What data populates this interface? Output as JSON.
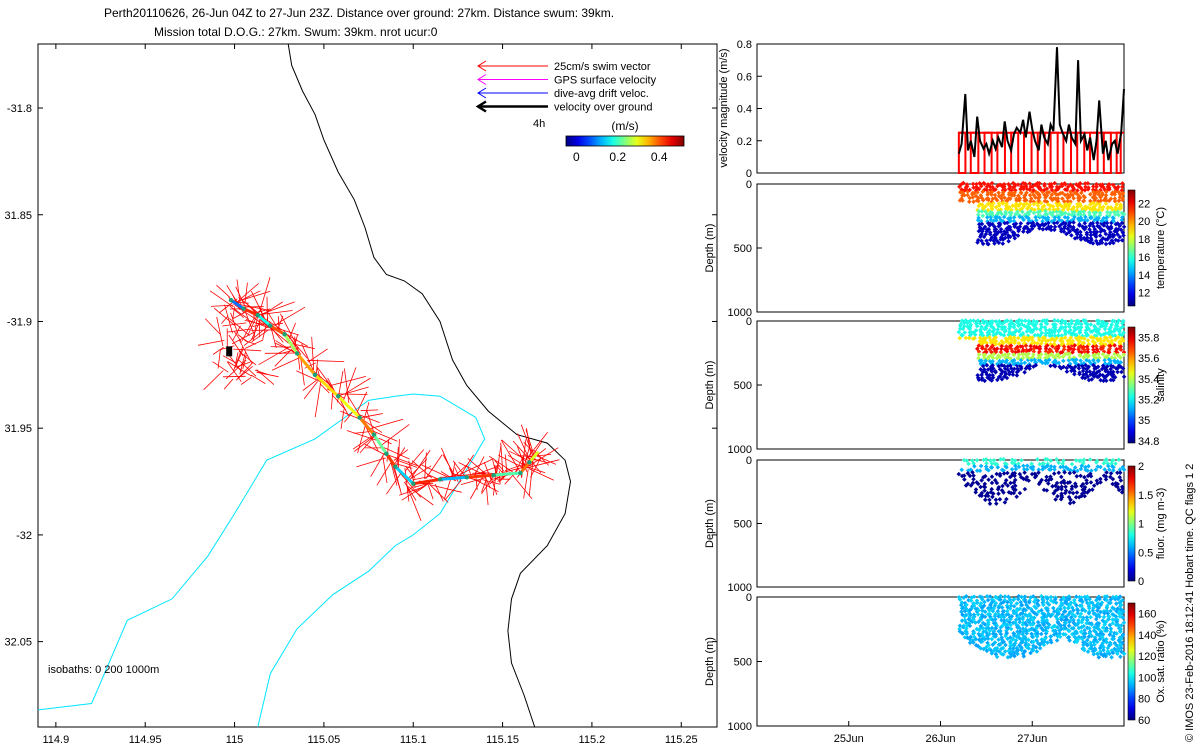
{
  "header": {
    "line1": "Perth20110626, 26-Jun 04Z to 27-Jun 23Z. Distance over ground: 27km. Distance swum: 39km.",
    "line2": "Mission total D.O.G.: 27km. Swum: 39km. nrot ucur:0"
  },
  "copyright": "© IMOS 23-Feb-2016 18:12:41 Hobart time. QC flags 1  2",
  "colors": {
    "swim_vector": "#ff0000",
    "gps_velocity": "#ff00ff",
    "drift_velocity": "#0000ff",
    "over_ground": "#000000",
    "isobath_200": "#00e5ff",
    "coast": "#000000",
    "velocity_bars": "#ff0000",
    "velocity_line": "#000000"
  },
  "chart_data": [
    {
      "type": "map",
      "xlim": [
        114.89,
        115.27
      ],
      "ylim": [
        -32.09,
        -31.77
      ],
      "xticks": [
        114.9,
        114.95,
        115,
        115.05,
        115.1,
        115.15,
        115.2,
        115.25
      ],
      "xtick_labels": [
        "114.9",
        "114.95",
        "115",
        "115.05",
        "115.1",
        "115.15",
        "115.2",
        "115.25"
      ],
      "yticks": [
        -31.8,
        -31.85,
        -31.9,
        -31.95,
        -32,
        -32.05
      ],
      "ytick_labels": [
        "-31.8",
        "31.85",
        "-31.9",
        "31.95",
        "-32",
        "32.05"
      ],
      "legend": {
        "position": "top-right",
        "entries": [
          {
            "label": "25cm/s swim vector",
            "color": "#ff0000"
          },
          {
            "label": "GPS surface velocity",
            "color": "#ff00ff"
          },
          {
            "label": "dive-avg drift veloc.",
            "color": "#0000ff"
          },
          {
            "label": "velocity over ground",
            "color": "#000000"
          }
        ],
        "scale_label": "4h"
      },
      "colorbar": {
        "label": "(m/s)",
        "ticks": [
          0,
          0.2,
          0.4
        ],
        "tick_labels": [
          "0",
          "0.2",
          "0.4"
        ],
        "range": [
          -0.05,
          0.52
        ]
      },
      "isobath_label": "isobaths: 0   200  1000m",
      "coastline": [
        [
          115.03,
          -31.77
        ],
        [
          115.032,
          -31.78
        ],
        [
          115.038,
          -31.792
        ],
        [
          115.045,
          -31.803
        ],
        [
          115.05,
          -31.815
        ],
        [
          115.058,
          -31.83
        ],
        [
          115.067,
          -31.843
        ],
        [
          115.073,
          -31.856
        ],
        [
          115.078,
          -31.87
        ],
        [
          115.085,
          -31.878
        ],
        [
          115.095,
          -31.881
        ],
        [
          115.105,
          -31.887
        ],
        [
          115.115,
          -31.9
        ],
        [
          115.122,
          -31.918
        ],
        [
          115.13,
          -31.93
        ],
        [
          115.142,
          -31.942
        ],
        [
          115.158,
          -31.953
        ],
        [
          115.175,
          -31.957
        ],
        [
          115.185,
          -31.965
        ],
        [
          115.188,
          -31.975
        ],
        [
          115.185,
          -31.99
        ],
        [
          115.175,
          -32.005
        ],
        [
          115.16,
          -32.018
        ],
        [
          115.155,
          -32.03
        ],
        [
          115.153,
          -32.045
        ],
        [
          115.155,
          -32.06
        ],
        [
          115.162,
          -32.075
        ],
        [
          115.168,
          -32.09
        ]
      ],
      "isobath_200": [
        [
          114.89,
          -32.082
        ],
        [
          114.92,
          -32.079
        ],
        [
          114.94,
          -32.04
        ],
        [
          114.965,
          -32.03
        ],
        [
          114.985,
          -32.01
        ],
        [
          115.0,
          -31.99
        ],
        [
          115.018,
          -31.965
        ],
        [
          115.045,
          -31.955
        ],
        [
          115.06,
          -31.946
        ],
        [
          115.075,
          -31.937
        ],
        [
          115.09,
          -31.935
        ],
        [
          115.1,
          -31.934
        ],
        [
          115.115,
          -31.935
        ],
        [
          115.125,
          -31.94
        ],
        [
          115.135,
          -31.945
        ],
        [
          115.14,
          -31.955
        ],
        [
          115.128,
          -31.972
        ],
        [
          115.115,
          -31.99
        ],
        [
          115.1,
          -32.0
        ],
        [
          115.09,
          -32.005
        ],
        [
          115.075,
          -32.017
        ],
        [
          115.055,
          -32.028
        ],
        [
          115.035,
          -32.044
        ],
        [
          115.02,
          -32.065
        ],
        [
          115.013,
          -32.09
        ]
      ],
      "track_over_ground": [
        [
          114.998,
          -31.89
        ],
        [
          115.005,
          -31.894
        ],
        [
          115.013,
          -31.897
        ],
        [
          115.02,
          -31.902
        ],
        [
          115.028,
          -31.906
        ],
        [
          115.035,
          -31.915
        ],
        [
          115.045,
          -31.925
        ],
        [
          115.058,
          -31.935
        ],
        [
          115.07,
          -31.945
        ],
        [
          115.078,
          -31.953
        ],
        [
          115.085,
          -31.962
        ],
        [
          115.09,
          -31.968
        ],
        [
          115.1,
          -31.976
        ],
        [
          115.115,
          -31.974
        ],
        [
          115.13,
          -31.973
        ],
        [
          115.145,
          -31.972
        ],
        [
          115.16,
          -31.971
        ],
        [
          115.165,
          -31.966
        ],
        [
          115.17,
          -31.961
        ]
      ],
      "track_start": [
        114.997,
        -31.914
      ]
    },
    {
      "type": "line",
      "ylabel": "velocity magnitude (m/s)",
      "ylim": [
        0,
        0.8
      ],
      "yticks": [
        0,
        0.2,
        0.4,
        0.6,
        0.8
      ],
      "ytick_labels": [
        "0",
        "0.2",
        "0.4",
        "0.6",
        "0.8"
      ],
      "xlim_days": [
        24.0,
        28.0
      ],
      "series": [
        {
          "role": "swim speed",
          "style": "step",
          "color": "#ff0000",
          "x": [
            26.2,
            26.33,
            26.48,
            26.62,
            26.77,
            26.91,
            27.06,
            27.2,
            27.34,
            27.49,
            27.63,
            27.78,
            27.92,
            28.0
          ],
          "values": [
            0.25,
            0.25,
            0.25,
            0.25,
            0.25,
            0.25,
            0.25,
            0.25,
            0.25,
            0.25,
            0.25,
            0.25,
            0.25,
            0.25
          ]
        },
        {
          "role": "speed over ground",
          "color": "#000000",
          "x": [
            26.2,
            26.23,
            26.27,
            26.3,
            26.33,
            26.37,
            26.4,
            26.43,
            26.47,
            26.5,
            26.53,
            26.57,
            26.6,
            26.63,
            26.67,
            26.7,
            26.73,
            26.77,
            26.8,
            26.83,
            26.87,
            26.9,
            26.93,
            26.97,
            27.0,
            27.03,
            27.07,
            27.1,
            27.13,
            27.17,
            27.2,
            27.23,
            27.27,
            27.3,
            27.33,
            27.37,
            27.4,
            27.43,
            27.47,
            27.5,
            27.53,
            27.57,
            27.6,
            27.63,
            27.67,
            27.7,
            27.73,
            27.77,
            27.8,
            27.83,
            27.87,
            27.9,
            27.93,
            27.97,
            28.0
          ],
          "values": [
            0.12,
            0.18,
            0.49,
            0.14,
            0.2,
            0.1,
            0.35,
            0.2,
            0.15,
            0.18,
            0.12,
            0.2,
            0.15,
            0.22,
            0.16,
            0.32,
            0.2,
            0.14,
            0.24,
            0.28,
            0.25,
            0.33,
            0.22,
            0.38,
            0.27,
            0.2,
            0.14,
            0.3,
            0.22,
            0.18,
            0.3,
            0.26,
            0.78,
            0.3,
            0.25,
            0.2,
            0.3,
            0.22,
            0.18,
            0.7,
            0.2,
            0.24,
            0.14,
            0.22,
            0.08,
            0.2,
            0.45,
            0.12,
            0.2,
            0.08,
            0.18,
            0.2,
            0.12,
            0.25,
            0.52
          ]
        }
      ]
    },
    {
      "type": "scatter",
      "ylabel": "Depth (m)",
      "ylim": [
        1000,
        0
      ],
      "yticks": [
        0,
        500,
        1000
      ],
      "ytick_labels": [
        "0",
        "500",
        "1000"
      ],
      "xlim_days": [
        24.0,
        28.0
      ],
      "colorbar": {
        "label": "temperature (°C)",
        "ticks": [
          12,
          14,
          16,
          18,
          20,
          22
        ],
        "tick_labels": [
          "12",
          "14",
          "16",
          "18",
          "20",
          "22"
        ],
        "range": [
          10.5,
          23.5
        ]
      }
    },
    {
      "type": "scatter",
      "ylabel": "Depth (m)",
      "ylim": [
        1000,
        0
      ],
      "yticks": [
        0,
        500,
        1000
      ],
      "ytick_labels": [
        "0",
        "500",
        "1000"
      ],
      "xlim_days": [
        24.0,
        28.0
      ],
      "colorbar": {
        "label": "salinity",
        "ticks": [
          34.8,
          35,
          35.2,
          35.4,
          35.6,
          35.8
        ],
        "tick_labels": [
          "34.8",
          "35",
          "35.2",
          "35.4",
          "35.6",
          "35.8"
        ],
        "range": [
          34.78,
          35.9
        ]
      }
    },
    {
      "type": "scatter",
      "ylabel": "Depth (m)",
      "ylim": [
        1000,
        0
      ],
      "yticks": [
        0,
        500,
        1000
      ],
      "ytick_labels": [
        "0",
        "500",
        "1000"
      ],
      "xlim_days": [
        24.0,
        28.0
      ],
      "colorbar": {
        "label": "fluor. (mg m-3)",
        "ticks": [
          0,
          0.5,
          1,
          1.5,
          2
        ],
        "tick_labels": [
          "0",
          "0.5",
          "1",
          "1.5",
          "2"
        ],
        "range": [
          0,
          2
        ]
      }
    },
    {
      "type": "scatter",
      "ylabel": "Depth (m)",
      "ylim": [
        1000,
        0
      ],
      "yticks": [
        0,
        500,
        1000
      ],
      "ytick_labels": [
        "0",
        "500",
        "1000"
      ],
      "xlim_days": [
        24.0,
        28.0
      ],
      "xticks_days": [
        25,
        26,
        27
      ],
      "xtick_labels": [
        "25Jun",
        "26Jun",
        "27Jun"
      ],
      "colorbar": {
        "label": "Ox. sat. ratio (%)",
        "ticks": [
          60,
          80,
          100,
          120,
          140,
          160
        ],
        "tick_labels": [
          "60",
          "80",
          "100",
          "120",
          "140",
          "160"
        ],
        "range": [
          60,
          170
        ]
      }
    }
  ]
}
